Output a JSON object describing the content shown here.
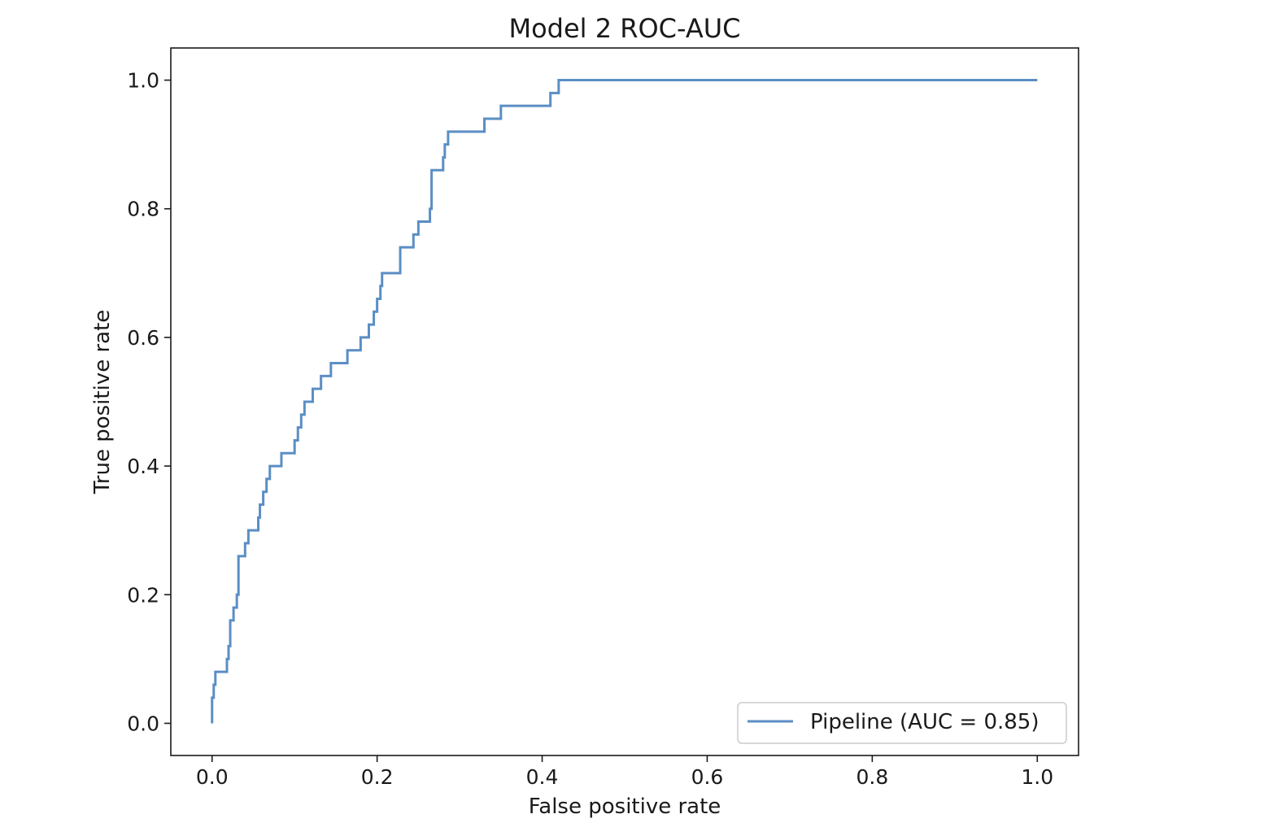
{
  "chart_data": {
    "type": "line",
    "title": "Model 2 ROC-AUC",
    "xlabel": "False positive rate",
    "ylabel": "True positive rate",
    "xlim": [
      -0.05,
      1.05
    ],
    "ylim": [
      -0.05,
      1.05
    ],
    "x_ticks": [
      0.0,
      0.2,
      0.4,
      0.6,
      0.8,
      1.0
    ],
    "x_tick_labels": [
      "0.0",
      "0.2",
      "0.4",
      "0.6",
      "0.8",
      "1.0"
    ],
    "y_ticks": [
      0.0,
      0.2,
      0.4,
      0.6,
      0.8,
      1.0
    ],
    "y_tick_labels": [
      "0.0",
      "0.2",
      "0.4",
      "0.6",
      "0.8",
      "1.0"
    ],
    "grid": false,
    "legend_position": "lower-right",
    "series": [
      {
        "name": "Pipeline (AUC = 0.85)",
        "color": "#5b8ec4",
        "x": [
          0.0,
          0.0,
          0.002,
          0.002,
          0.004,
          0.004,
          0.018,
          0.018,
          0.02,
          0.02,
          0.022,
          0.022,
          0.026,
          0.026,
          0.03,
          0.03,
          0.032,
          0.032,
          0.04,
          0.04,
          0.044,
          0.044,
          0.056,
          0.056,
          0.058,
          0.058,
          0.062,
          0.062,
          0.066,
          0.066,
          0.07,
          0.07,
          0.084,
          0.084,
          0.1,
          0.1,
          0.104,
          0.104,
          0.108,
          0.108,
          0.112,
          0.112,
          0.122,
          0.122,
          0.132,
          0.132,
          0.144,
          0.144,
          0.164,
          0.164,
          0.18,
          0.18,
          0.19,
          0.19,
          0.196,
          0.196,
          0.2,
          0.2,
          0.204,
          0.204,
          0.206,
          0.206,
          0.228,
          0.228,
          0.244,
          0.244,
          0.25,
          0.25,
          0.264,
          0.264,
          0.266,
          0.266,
          0.28,
          0.28,
          0.282,
          0.282,
          0.286,
          0.286,
          0.294,
          0.294,
          0.314,
          0.314,
          0.318,
          0.318,
          0.33,
          0.33,
          0.35,
          0.35,
          0.36,
          0.36,
          0.376,
          0.376,
          0.41,
          0.41,
          0.42,
          0.42,
          1.0
        ],
        "y": [
          0.0,
          0.04,
          0.04,
          0.06,
          0.06,
          0.08,
          0.08,
          0.1,
          0.1,
          0.12,
          0.12,
          0.16,
          0.16,
          0.18,
          0.18,
          0.2,
          0.2,
          0.26,
          0.26,
          0.28,
          0.28,
          0.3,
          0.3,
          0.32,
          0.32,
          0.34,
          0.34,
          0.36,
          0.36,
          0.38,
          0.38,
          0.4,
          0.4,
          0.42,
          0.42,
          0.44,
          0.44,
          0.46,
          0.46,
          0.48,
          0.48,
          0.5,
          0.5,
          0.52,
          0.52,
          0.54,
          0.54,
          0.56,
          0.56,
          0.58,
          0.58,
          0.6,
          0.6,
          0.62,
          0.62,
          0.64,
          0.64,
          0.66,
          0.66,
          0.68,
          0.68,
          0.7,
          0.7,
          0.74,
          0.74,
          0.76,
          0.76,
          0.78,
          0.78,
          0.8,
          0.8,
          0.86,
          0.86,
          0.88,
          0.88,
          0.9,
          0.9,
          0.92,
          0.92,
          0.92,
          0.92,
          0.92,
          0.92,
          0.92,
          0.92,
          0.94,
          0.94,
          0.96,
          0.96,
          0.96,
          0.96,
          0.96,
          0.96,
          0.98,
          0.98,
          1.0,
          1.0
        ]
      }
    ]
  }
}
